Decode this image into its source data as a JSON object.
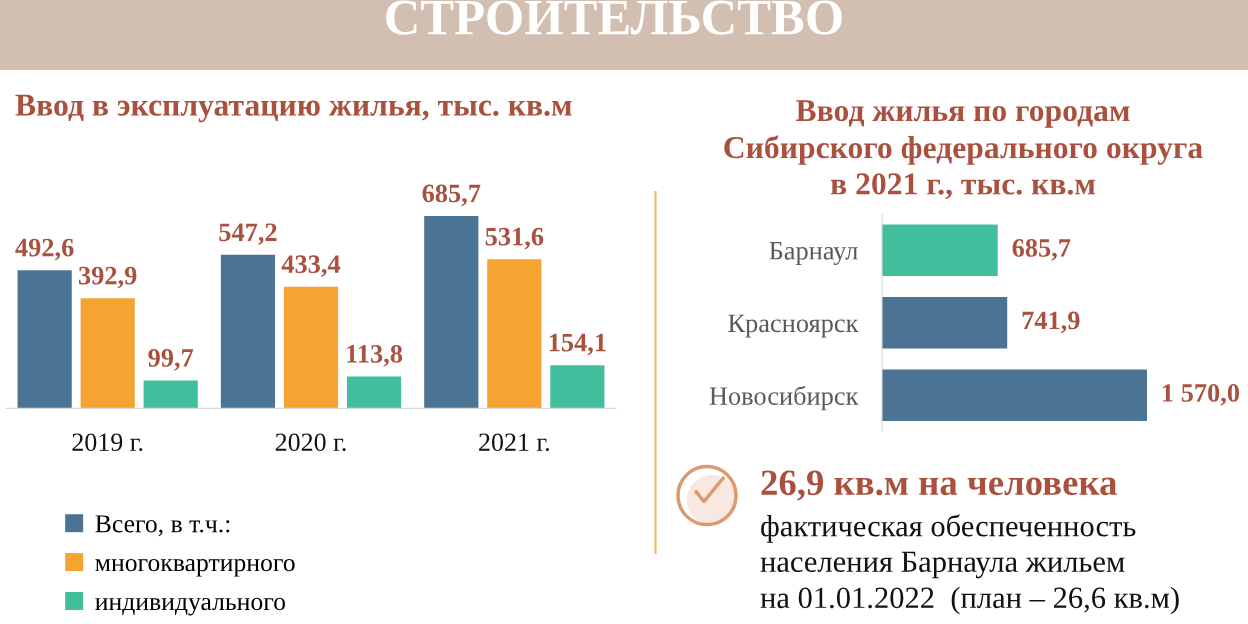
{
  "chart_data": [
    {
      "type": "other",
      "title": "СТРОИТЕЛЬСТВО"
    },
    {
      "type": "bar",
      "title": "Ввод в эксплуатацию жилья, тыс. кв.м",
      "categories": [
        "2019 г.",
        "2020 г.",
        "2021 г."
      ],
      "series": [
        {
          "name": "Всего, в т.ч.:",
          "color": "#4a7394",
          "values": [
            492.6,
            547.2,
            685.7
          ],
          "value_labels": [
            "492,6",
            "547,2",
            "685,7"
          ]
        },
        {
          "name": "многоквартирного",
          "color": "#f5a431",
          "values": [
            392.9,
            433.4,
            531.6
          ],
          "value_labels": [
            "392,9",
            "433,4",
            "531,6"
          ]
        },
        {
          "name": "индивидуального",
          "color": "#41bf9c",
          "values": [
            99.7,
            113.8,
            154.1
          ],
          "value_labels": [
            "99,7",
            "113,8",
            "154,1"
          ]
        }
      ],
      "tick_labels": "x",
      "legend": "bottom left"
    },
    {
      "type": "bar",
      "orientation": "horizontal",
      "title": "Ввод жилья по городам\nСибирского федерального округа\nв 2021 г., тыс. кв.м",
      "categories": [
        "Барнаул",
        "Красноярск",
        "Новосибирск"
      ],
      "values": [
        685.7,
        741.9,
        1570.0
      ],
      "colors": [
        "#41bf9c",
        "#4a7394",
        "#4a7394"
      ],
      "value_labels": [
        "685,7",
        "741,9",
        "1 570,0"
      ],
      "tick_labels": "y"
    },
    {
      "type": "other",
      "title": "26,9 кв.м на человека",
      "annotations": [
        "фактическая обеспеченность",
        "населения Барнаула жильем",
        "на 01.01.2022  (план – 26,6 кв.м)"
      ]
    }
  ]
}
